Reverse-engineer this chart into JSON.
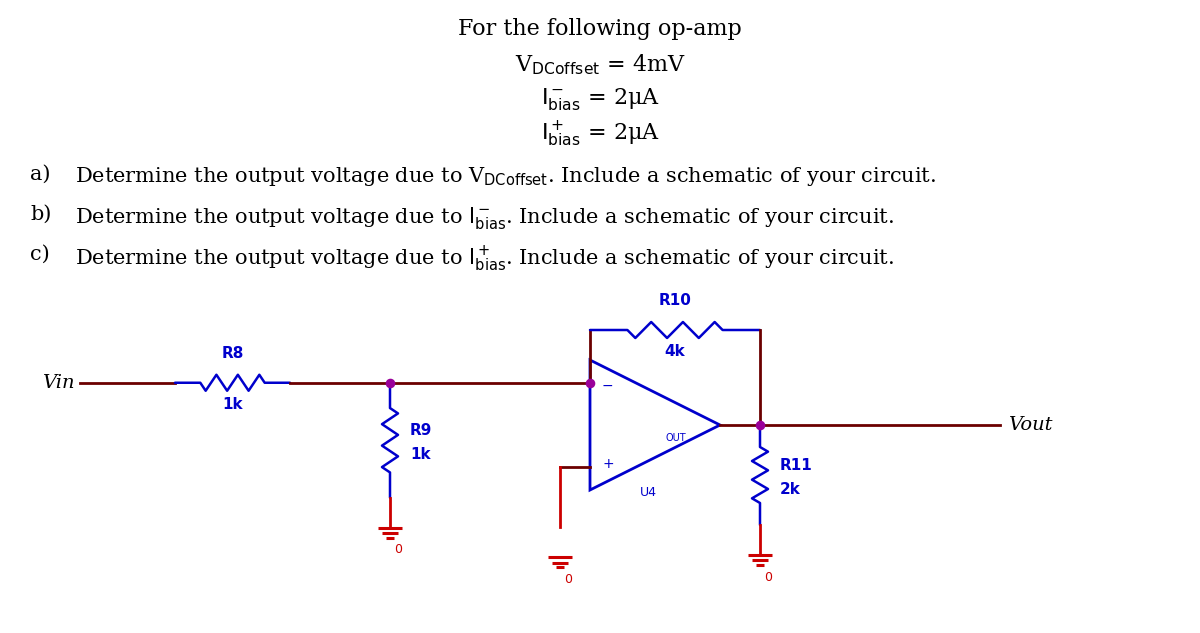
{
  "bg_color": "#FFFFFF",
  "wire_color": "#6B0000",
  "resistor_color": "#0000CC",
  "opamp_color": "#0000CC",
  "dot_color": "#990099",
  "ground_color": "#CC0000",
  "text_color": "#000000",
  "label_blue": "#0000CC",
  "title_line1": "For the following op-amp",
  "title_line2": "V$_{\\mathrm{DCoffset}}$ = 4mV",
  "title_line3": "$\\mathrm{I^-_{bias}}$ = 2μA",
  "title_line4": "$\\mathrm{I^+_{bias}}$ = 2μA",
  "item_a_label": "a)",
  "item_a_text": "Determine the output voltage due to V$_{\\mathrm{DCoffset}}$. Include a schematic of your circuit.",
  "item_b_label": "b)",
  "item_b_text": "Determine the output voltage due to $\\mathrm{I^-_{bias}}$. Include a schematic of your circuit.",
  "item_c_label": "c)",
  "item_c_text": "Determine the output voltage due to $\\mathrm{I^+_{bias}}$. Include a schematic of your circuit."
}
